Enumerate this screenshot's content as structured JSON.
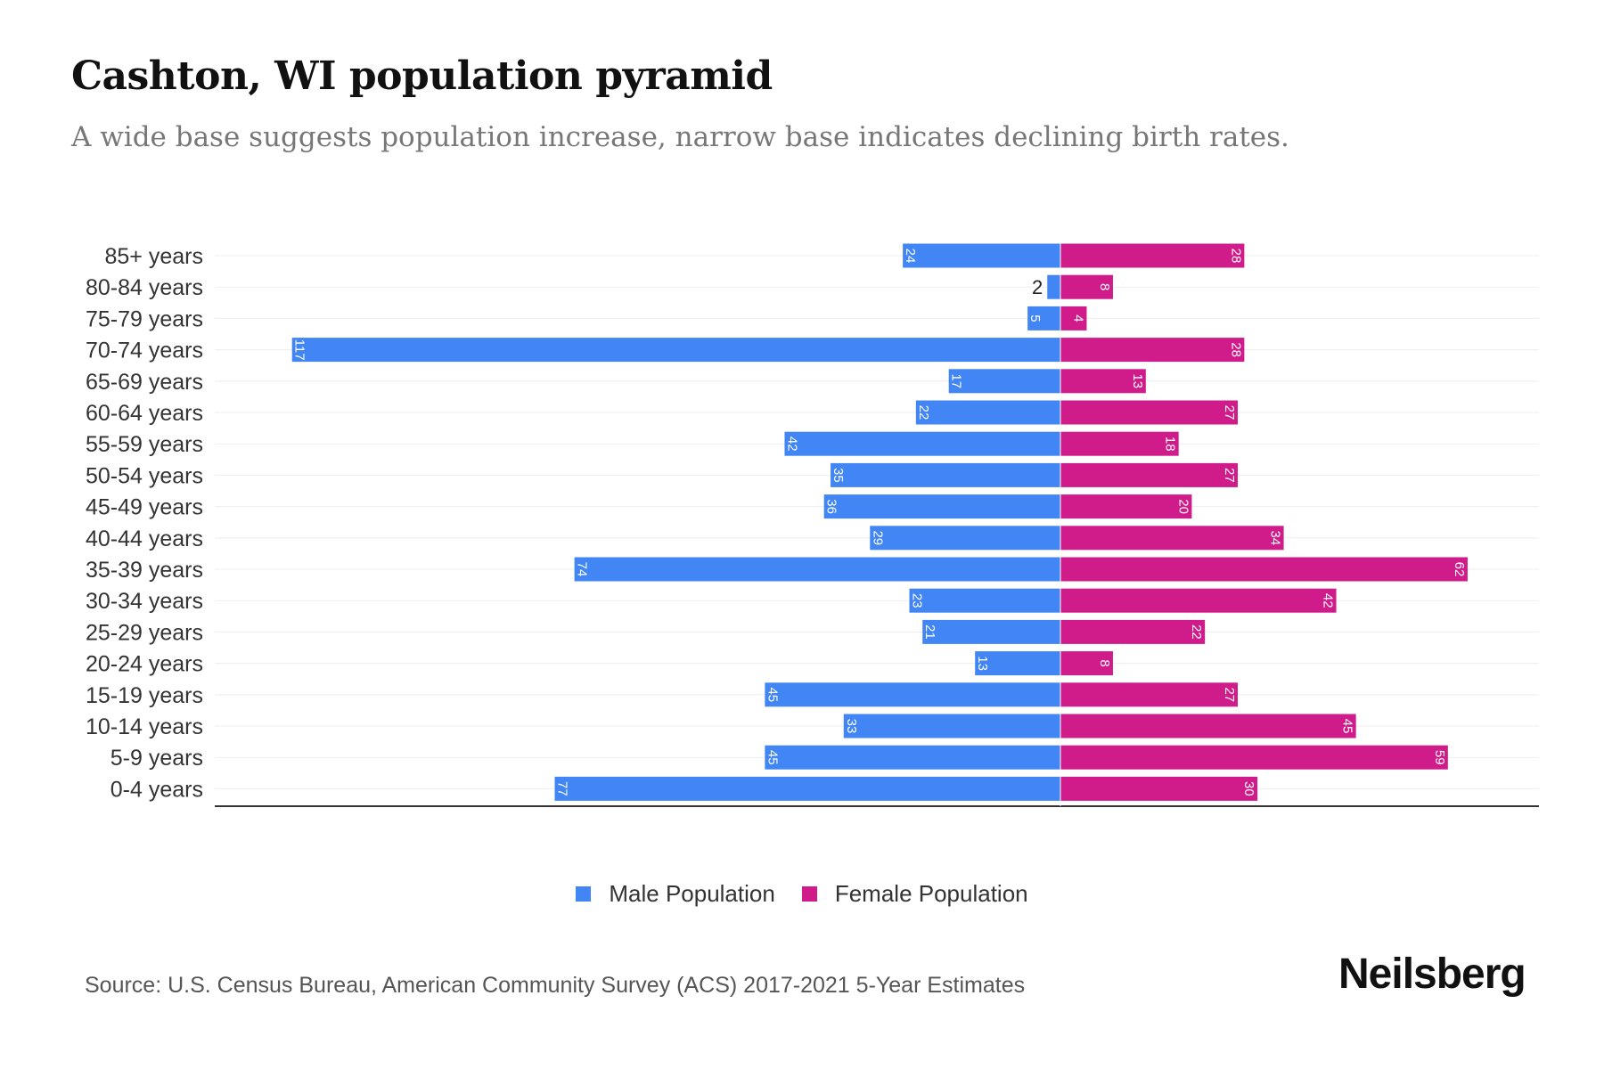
{
  "title": "Cashton, WI population pyramid",
  "subtitle": "A wide base suggests population increase, narrow base indicates declining birth rates.",
  "source": "Source: U.S. Census Bureau, American Community Survey (ACS) 2017-2021 5-Year Estimates",
  "logo": "Neilsberg",
  "colors": {
    "male": "#4285F4",
    "female": "#D01C8B"
  },
  "chart_data": {
    "type": "bar",
    "orientation": "horizontal-pyramid",
    "categories": [
      "85+ years",
      "80-84 years",
      "75-79 years",
      "70-74 years",
      "65-69 years",
      "60-64 years",
      "55-59 years",
      "50-54 years",
      "45-49 years",
      "40-44 years",
      "35-39 years",
      "30-34 years",
      "25-29 years",
      "20-24 years",
      "15-19 years",
      "10-14 years",
      "5-9 years",
      "0-4 years"
    ],
    "series": [
      {
        "name": "Male Population",
        "values": [
          24,
          2,
          5,
          117,
          17,
          22,
          42,
          35,
          36,
          29,
          74,
          23,
          21,
          13,
          45,
          33,
          45,
          77
        ]
      },
      {
        "name": "Female Population",
        "values": [
          28,
          8,
          4,
          28,
          13,
          27,
          18,
          27,
          20,
          34,
          62,
          42,
          22,
          8,
          27,
          45,
          59,
          30
        ]
      }
    ],
    "legend": "bottom-center",
    "grid": true
  }
}
